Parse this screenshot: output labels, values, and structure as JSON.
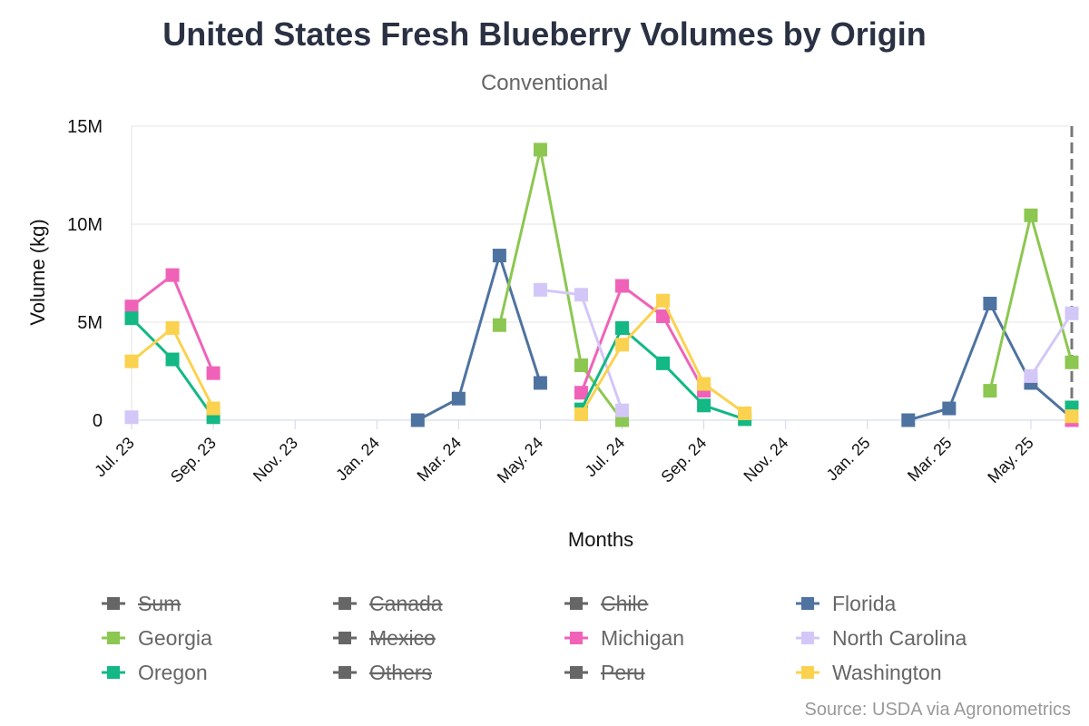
{
  "chart_data": {
    "type": "line",
    "title": "United States Fresh Blueberry Volumes by Origin",
    "subtitle": "Conventional",
    "xlabel": "Months",
    "ylabel": "Volume (kg)",
    "source": "Source: USDA via Agronometrics",
    "x": [
      "2023-07",
      "2023-08",
      "2023-09",
      "2023-10",
      "2023-11",
      "2023-12",
      "2024-01",
      "2024-02",
      "2024-03",
      "2024-04",
      "2024-05",
      "2024-06",
      "2024-07",
      "2024-08",
      "2024-09",
      "2024-10",
      "2024-11",
      "2024-12",
      "2025-01",
      "2025-02",
      "2025-03",
      "2025-04",
      "2025-05",
      "2025-06"
    ],
    "x_tick_labels": [
      "Jul. 23",
      "Sep. 23",
      "Nov. 23",
      "Jan. 24",
      "Mar. 24",
      "May. 24",
      "Jul. 24",
      "Sep. 24",
      "Nov. 24",
      "Jan. 25",
      "Mar. 25",
      "May. 25"
    ],
    "y_tick_labels": [
      "0",
      "5M",
      "10M",
      "15M"
    ],
    "y_ticks": [
      0,
      5000000,
      10000000,
      15000000
    ],
    "ylim": [
      0,
      15000000
    ],
    "grid": true,
    "legend_position": "bottom",
    "current_marker": "2025-06",
    "series": [
      {
        "name": "Sum",
        "visible": false,
        "color": "#666666",
        "points": []
      },
      {
        "name": "Canada",
        "visible": false,
        "color": "#666666",
        "points": []
      },
      {
        "name": "Chile",
        "visible": false,
        "color": "#666666",
        "points": []
      },
      {
        "name": "Florida",
        "visible": true,
        "color": "#4e73a0",
        "points": [
          [
            "2024-02",
            0
          ],
          [
            "2024-03",
            1100000
          ],
          [
            "2024-04",
            8400000
          ],
          [
            "2024-05",
            1900000
          ],
          null,
          [
            "2025-02",
            0
          ],
          [
            "2025-03",
            600000
          ],
          [
            "2025-04",
            5950000
          ],
          [
            "2025-05",
            1900000
          ],
          [
            "2025-06",
            100000
          ]
        ]
      },
      {
        "name": "Georgia",
        "visible": true,
        "color": "#8cc751",
        "points": [
          [
            "2024-04",
            4850000
          ],
          [
            "2024-05",
            13800000
          ],
          [
            "2024-06",
            2800000
          ],
          [
            "2024-07",
            0
          ],
          null,
          [
            "2025-04",
            1500000
          ],
          [
            "2025-05",
            10450000
          ],
          [
            "2025-06",
            2950000
          ]
        ]
      },
      {
        "name": "Mexico",
        "visible": false,
        "color": "#666666",
        "points": []
      },
      {
        "name": "Michigan",
        "visible": true,
        "color": "#f062b8",
        "points": [
          [
            "2023-07",
            5800000
          ],
          [
            "2023-08",
            7400000
          ],
          [
            "2023-09",
            2400000
          ],
          null,
          [
            "2024-06",
            1400000
          ],
          [
            "2024-07",
            6850000
          ],
          [
            "2024-08",
            5300000
          ],
          [
            "2024-09",
            1500000
          ],
          null,
          [
            "2025-06",
            0
          ]
        ]
      },
      {
        "name": "North Carolina",
        "visible": true,
        "color": "#d3c7f8",
        "points": [
          [
            "2023-07",
            150000
          ],
          null,
          [
            "2024-05",
            6650000
          ],
          [
            "2024-06",
            6400000
          ],
          [
            "2024-07",
            500000
          ],
          null,
          [
            "2025-05",
            2250000
          ],
          [
            "2025-06",
            5450000
          ]
        ]
      },
      {
        "name": "Oregon",
        "visible": true,
        "color": "#13b884",
        "points": [
          [
            "2023-07",
            5200000
          ],
          [
            "2023-08",
            3100000
          ],
          [
            "2023-09",
            150000
          ],
          null,
          [
            "2024-06",
            550000
          ],
          [
            "2024-07",
            4700000
          ],
          [
            "2024-08",
            2900000
          ],
          [
            "2024-09",
            750000
          ],
          [
            "2024-10",
            50000
          ],
          null,
          [
            "2025-06",
            650000
          ]
        ]
      },
      {
        "name": "Others",
        "visible": false,
        "color": "#666666",
        "points": []
      },
      {
        "name": "Peru",
        "visible": false,
        "color": "#666666",
        "points": []
      },
      {
        "name": "Washington",
        "visible": true,
        "color": "#fbd24f",
        "points": [
          [
            "2023-07",
            3000000
          ],
          [
            "2023-08",
            4700000
          ],
          [
            "2023-09",
            600000
          ],
          null,
          [
            "2024-06",
            300000
          ],
          [
            "2024-07",
            3850000
          ],
          [
            "2024-08",
            6100000
          ],
          [
            "2024-09",
            1850000
          ],
          [
            "2024-10",
            350000
          ],
          null,
          [
            "2025-06",
            200000
          ]
        ]
      }
    ]
  }
}
